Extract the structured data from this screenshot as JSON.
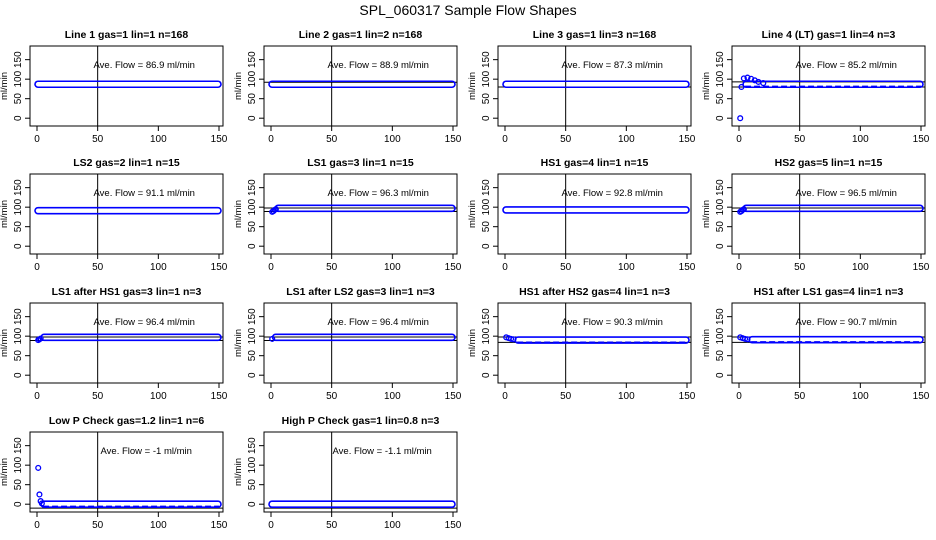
{
  "title": "SPL_060317  Sample Flow Shapes",
  "colors": {
    "points": "#0000ff",
    "axis": "#000000",
    "text": "#000000"
  },
  "shared_axes": {
    "ylabel": "ml/min",
    "xticks": [
      0,
      50,
      100,
      150
    ],
    "yticks": [
      0,
      50,
      100,
      150
    ],
    "xlim": [
      0,
      150
    ],
    "ylim": [
      -20,
      185
    ]
  },
  "chart_data": [
    {
      "type": "scatter",
      "title": "Line 1 gas=1 lin=1 n=168",
      "annotation": "Ave. Flow =  86.9  ml/min",
      "ylabel": "ml/min",
      "xlim": [
        0,
        150
      ],
      "ylim": [
        -20,
        185
      ],
      "vline_x": 50,
      "hlines": [],
      "shape": "flat",
      "values": {
        "x_start": 0,
        "x_end": 150,
        "level": 87,
        "points": []
      }
    },
    {
      "type": "scatter",
      "title": "Line 2 gas=1 lin=2 n=168",
      "annotation": "Ave. Flow =  88.9  ml/min",
      "ylabel": "ml/min",
      "xlim": [
        0,
        150
      ],
      "ylim": [
        -20,
        185
      ],
      "vline_x": 50,
      "hlines": [
        92
      ],
      "shape": "flat",
      "values": {
        "x_start": 0,
        "x_end": 150,
        "level": 87,
        "points": []
      }
    },
    {
      "type": "scatter",
      "title": "Line 3 gas=1 lin=3 n=168",
      "annotation": "Ave. Flow =  87.3  ml/min",
      "ylabel": "ml/min",
      "xlim": [
        0,
        150
      ],
      "ylim": [
        -20,
        185
      ],
      "vline_x": 50,
      "hlines": [
        80
      ],
      "shape": "flat",
      "values": {
        "x_start": 0,
        "x_end": 150,
        "level": 87,
        "points": []
      }
    },
    {
      "type": "scatter",
      "title": "Line 4 (LT) gas=1 lin=4 n=3",
      "annotation": "Ave. Flow =  85.2  ml/min",
      "ylabel": "ml/min",
      "xlim": [
        0,
        150
      ],
      "ylim": [
        -20,
        185
      ],
      "vline_x": 50,
      "hlines": [
        93,
        80
      ],
      "shape": "settle",
      "values": {
        "x_start": 5,
        "x_end": 150,
        "level": 87,
        "points": [
          [
            1,
            0
          ],
          [
            2,
            80
          ],
          [
            4,
            102
          ],
          [
            7,
            104
          ],
          [
            10,
            101
          ],
          [
            13,
            97
          ],
          [
            16,
            93
          ],
          [
            20,
            90
          ]
        ]
      }
    },
    {
      "type": "scatter",
      "title": "LS2 gas=2 lin=1 n=15",
      "annotation": "Ave. Flow =  91.1  ml/min",
      "ylabel": "ml/min",
      "xlim": [
        0,
        150
      ],
      "ylim": [
        -20,
        185
      ],
      "vline_x": 50,
      "hlines": [],
      "shape": "flat",
      "values": {
        "x_start": 0,
        "x_end": 150,
        "level": 91,
        "points": []
      }
    },
    {
      "type": "scatter",
      "title": "LS1 gas=3 lin=1 n=15",
      "annotation": "Ave. Flow =  96.3  ml/min",
      "ylabel": "ml/min",
      "xlim": [
        0,
        150
      ],
      "ylim": [
        -20,
        185
      ],
      "vline_x": 50,
      "hlines": [
        98,
        89
      ],
      "shape": "flat",
      "values": {
        "x_start": 5,
        "x_end": 150,
        "level": 97,
        "points": [
          [
            1,
            88
          ],
          [
            2,
            90
          ],
          [
            3,
            93
          ],
          [
            4,
            95
          ]
        ]
      }
    },
    {
      "type": "scatter",
      "title": "HS1 gas=4 lin=1 n=15",
      "annotation": "Ave. Flow =  92.8  ml/min",
      "ylabel": "ml/min",
      "xlim": [
        0,
        150
      ],
      "ylim": [
        -20,
        185
      ],
      "vline_x": 50,
      "hlines": [],
      "shape": "flat",
      "values": {
        "x_start": 0,
        "x_end": 150,
        "level": 93,
        "points": []
      }
    },
    {
      "type": "scatter",
      "title": "HS2 gas=5 lin=1 n=15",
      "annotation": "Ave. Flow =  96.5  ml/min",
      "ylabel": "ml/min",
      "xlim": [
        0,
        150
      ],
      "ylim": [
        -20,
        185
      ],
      "vline_x": 50,
      "hlines": [
        98,
        89
      ],
      "shape": "flat",
      "values": {
        "x_start": 5,
        "x_end": 150,
        "level": 97,
        "points": [
          [
            1,
            88
          ],
          [
            2,
            90
          ],
          [
            3,
            93
          ],
          [
            4,
            95
          ]
        ]
      }
    },
    {
      "type": "scatter",
      "title": "LS1 after HS1 gas=3 lin=1 n=3",
      "annotation": "Ave. Flow =  96.4  ml/min",
      "ylabel": "ml/min",
      "xlim": [
        0,
        150
      ],
      "ylim": [
        -20,
        185
      ],
      "vline_x": 50,
      "hlines": [
        98,
        89
      ],
      "shape": "flat",
      "values": {
        "x_start": 5,
        "x_end": 150,
        "level": 97,
        "points": [
          [
            1,
            90
          ],
          [
            2,
            92
          ],
          [
            3,
            94
          ]
        ]
      }
    },
    {
      "type": "scatter",
      "title": "LS1 after LS2 gas=3 lin=1 n=3",
      "annotation": "Ave. Flow =  96.4  ml/min",
      "ylabel": "ml/min",
      "xlim": [
        0,
        150
      ],
      "ylim": [
        -20,
        185
      ],
      "vline_x": 50,
      "hlines": [
        98,
        89
      ],
      "shape": "flat",
      "values": {
        "x_start": 3,
        "x_end": 150,
        "level": 97,
        "points": [
          [
            1,
            93
          ]
        ]
      }
    },
    {
      "type": "scatter",
      "title": "HS1 after HS2 gas=4 lin=1 n=3",
      "annotation": "Ave. Flow =  90.3  ml/min",
      "ylabel": "ml/min",
      "xlim": [
        0,
        150
      ],
      "ylim": [
        -20,
        185
      ],
      "vline_x": 50,
      "hlines": [
        98,
        84
      ],
      "shape": "decay",
      "values": {
        "x_start": 10,
        "x_end": 150,
        "level": 90,
        "points": [
          [
            1,
            97
          ],
          [
            3,
            95
          ],
          [
            5,
            93
          ],
          [
            7,
            92
          ]
        ]
      }
    },
    {
      "type": "scatter",
      "title": "HS1 after LS1 gas=4 lin=1 n=3",
      "annotation": "Ave. Flow =  90.7  ml/min",
      "ylabel": "ml/min",
      "xlim": [
        0,
        150
      ],
      "ylim": [
        -20,
        185
      ],
      "vline_x": 50,
      "hlines": [
        98,
        84
      ],
      "shape": "decay",
      "values": {
        "x_start": 10,
        "x_end": 150,
        "level": 91,
        "points": [
          [
            1,
            97
          ],
          [
            3,
            95
          ],
          [
            5,
            93
          ],
          [
            7,
            92
          ]
        ]
      }
    },
    {
      "type": "scatter",
      "title": "Low P Check gas=1.2 lin=1 n=6",
      "annotation": "Ave. Flow =  -1  ml/min",
      "ylabel": "ml/min",
      "xlim": [
        0,
        150
      ],
      "ylim": [
        -20,
        185
      ],
      "vline_x": 50,
      "hlines": [
        -10
      ],
      "shape": "spike",
      "values": {
        "x_start": 5,
        "x_end": 150,
        "level": 0,
        "points": [
          [
            1,
            93
          ],
          [
            2,
            25
          ],
          [
            3,
            8
          ],
          [
            4,
            2
          ]
        ]
      }
    },
    {
      "type": "scatter",
      "title": "High P Check gas=1 lin=0.8 n=3",
      "annotation": "Ave. Flow =  -1.1  ml/min",
      "ylabel": "ml/min",
      "xlim": [
        0,
        150
      ],
      "ylim": [
        -20,
        185
      ],
      "vline_x": 50,
      "hlines": [
        -10
      ],
      "shape": "flat",
      "values": {
        "x_start": 0,
        "x_end": 150,
        "level": 0,
        "points": []
      }
    }
  ]
}
